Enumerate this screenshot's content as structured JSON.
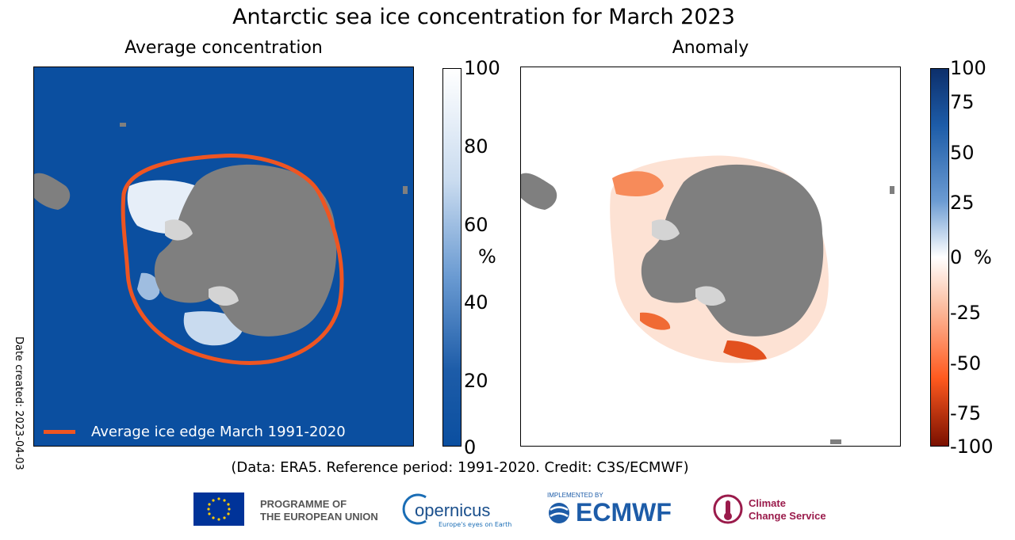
{
  "title": "Antarctic sea ice concentration for March 2023",
  "panels": [
    {
      "subtitle": "Average concentration"
    },
    {
      "subtitle": "Anomaly"
    }
  ],
  "colorbars": [
    {
      "ticks": [
        "100",
        "80",
        "60",
        "40",
        "20",
        "0"
      ],
      "unit": "%",
      "colors": [
        "#ffffff",
        "#0b4fa0"
      ]
    },
    {
      "ticks": [
        "100",
        "75",
        "50",
        "25",
        "0",
        "-25",
        "-50",
        "-75",
        "-100"
      ],
      "unit": "%",
      "colors": [
        "#0d2f6b",
        "#ffffff",
        "#ff5a1f",
        "#7a1000"
      ]
    }
  ],
  "legend": {
    "label": "Average ice edge March 1991-2020",
    "color": "#ee5522"
  },
  "date_created": "Date created: 2023-04-03",
  "credit": "(Data: ERA5.  Reference period: 1991-2020.  Credit: C3S/ECMWF)",
  "logos": {
    "eu_line1": "PROGRAMME OF",
    "eu_line2": "THE EUROPEAN UNION",
    "copernicus": "opernicus",
    "copernicus_tag": "Europe's eyes on Earth",
    "ecmwf_implemented": "IMPLEMENTED BY",
    "ecmwf": "ECMWF",
    "c3s_line1": "Climate",
    "c3s_line2": "Change Service"
  },
  "colors": {
    "ocean": "#0b4fa0",
    "land": "#7f7f7f",
    "shelf_ice": "#d4d4d4",
    "ice_edge": "#ee5522"
  }
}
